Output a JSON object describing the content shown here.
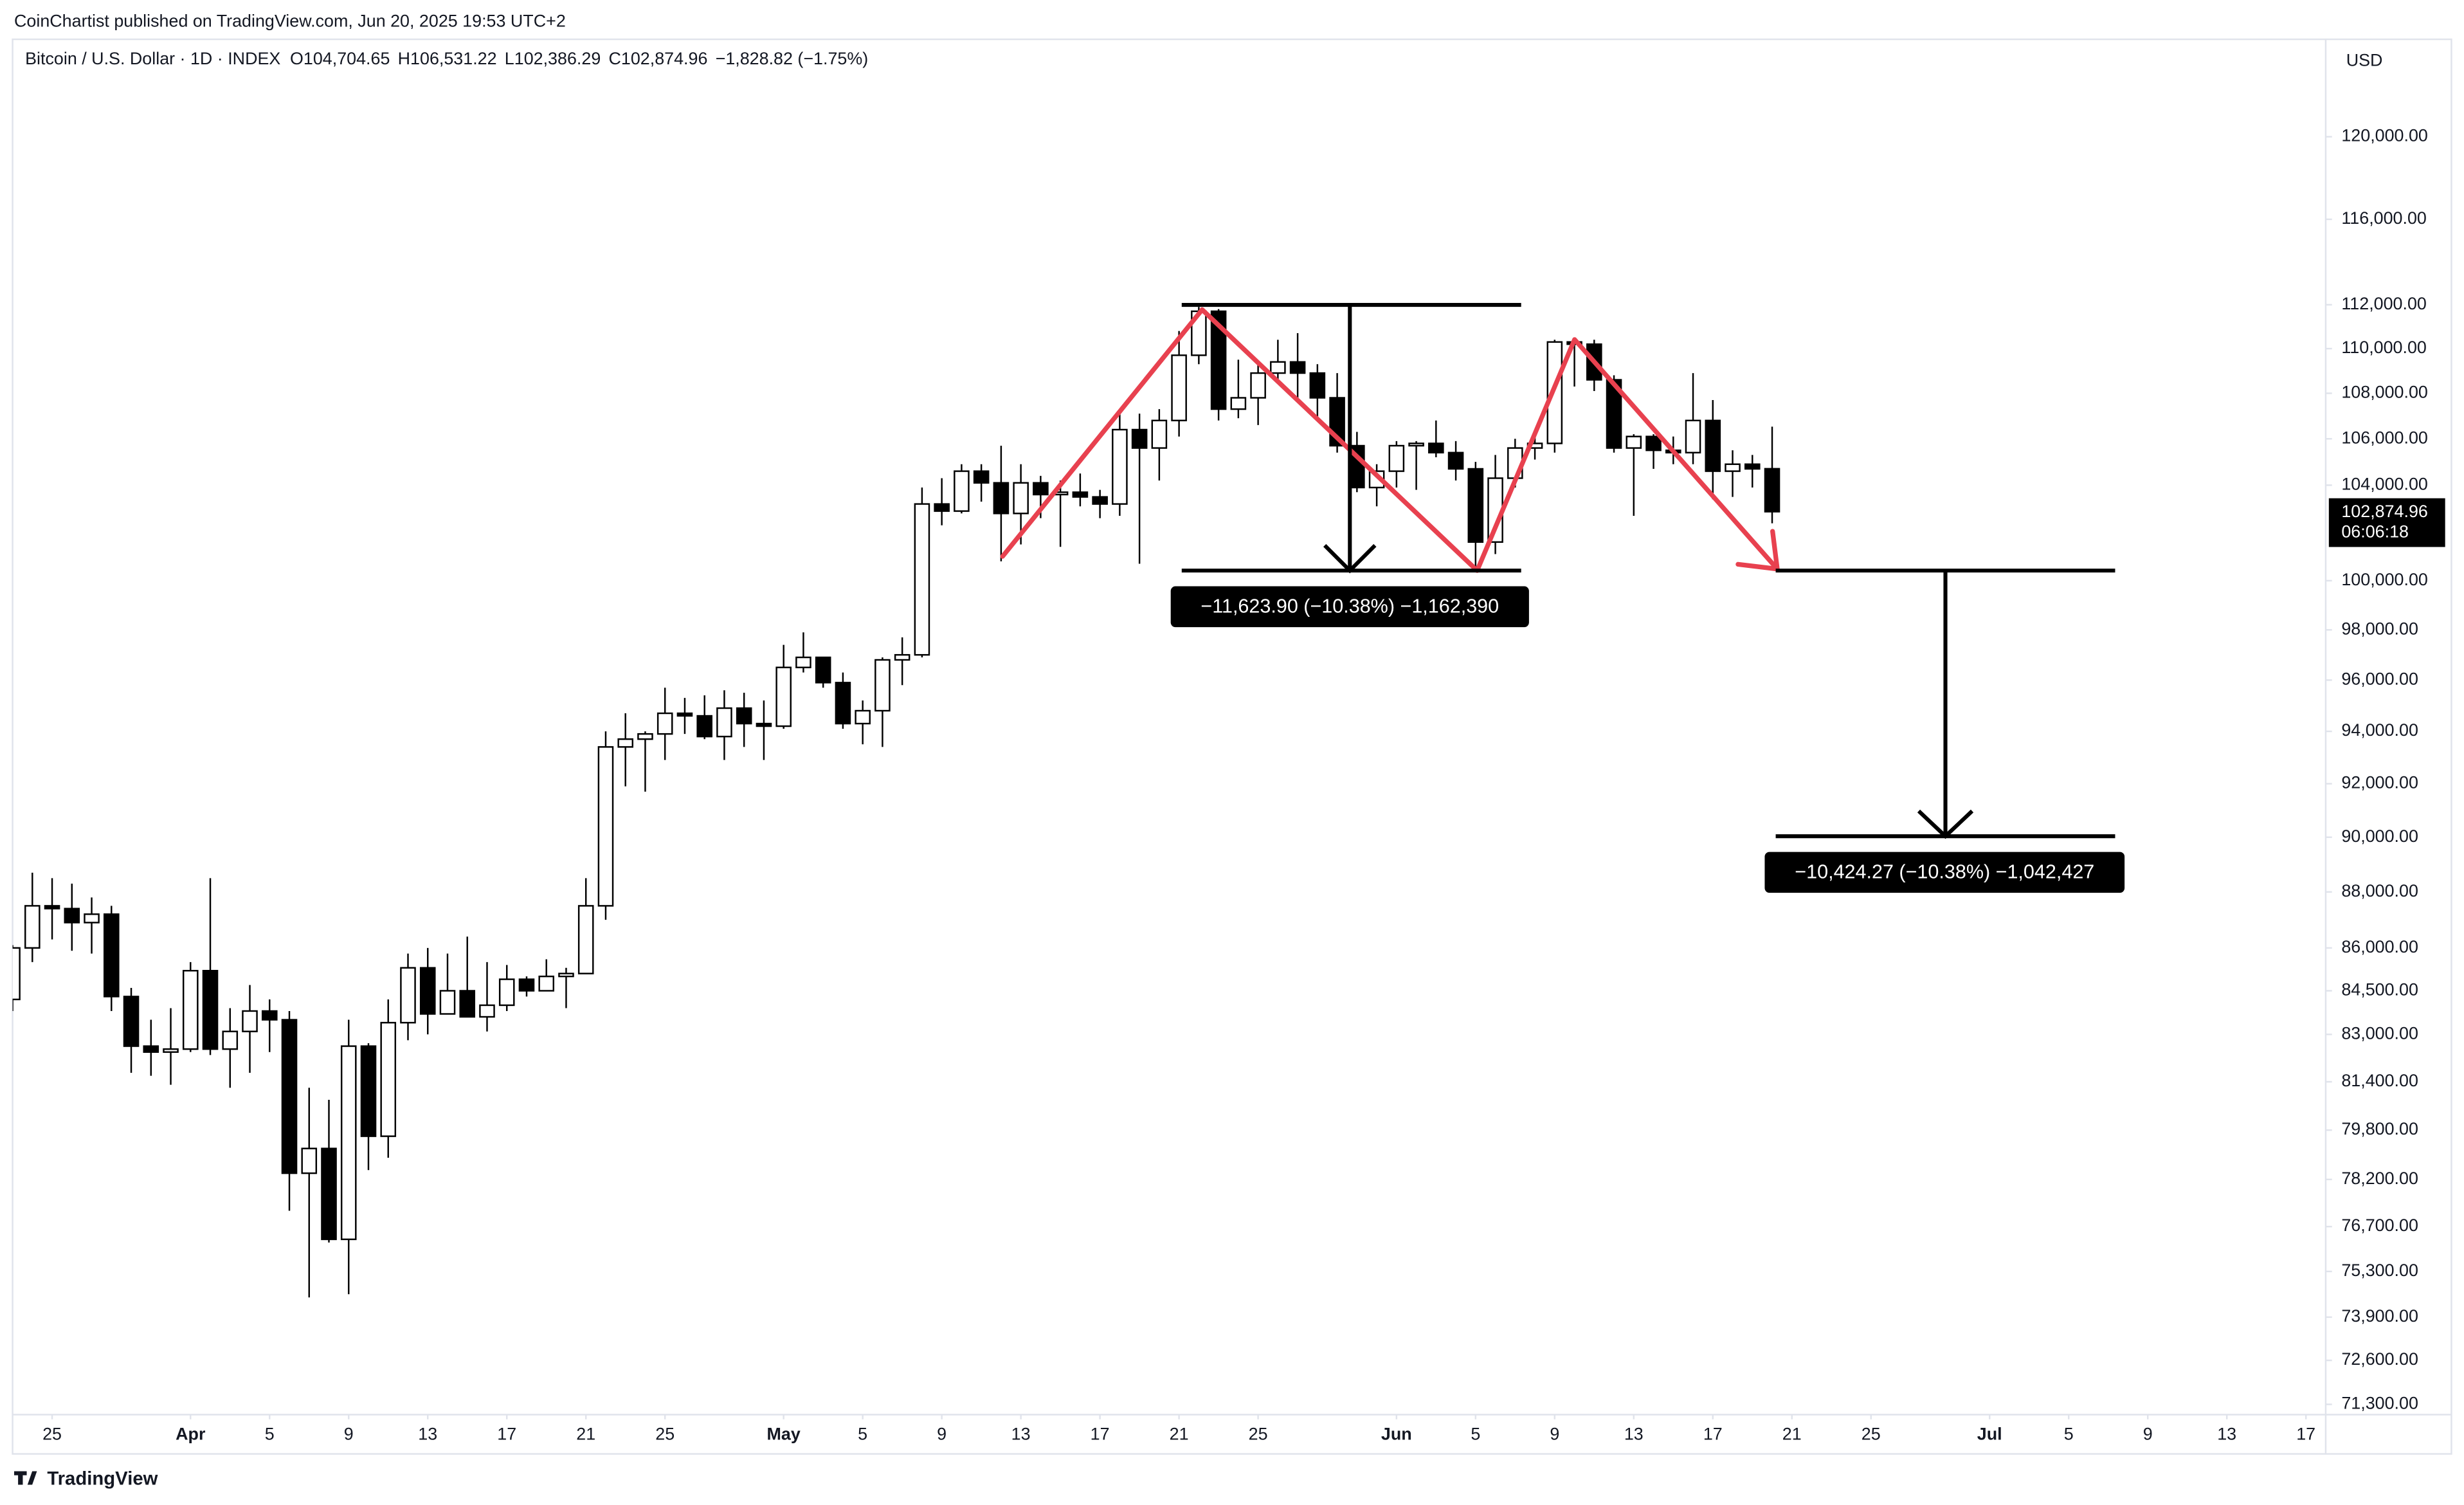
{
  "header": {
    "published": "CoinChartist published on TradingView.com, Jun 20, 2025 19:53 UTC+2",
    "logo": "TradingView"
  },
  "chart_data": {
    "type": "candlestick",
    "symbol": "Bitcoin / U.S. Dollar · 1D · INDEX",
    "legend_values": [
      "O104,704.65",
      "H106,531.22",
      "L102,386.29",
      "C102,874.96",
      "−1,828.82 (−1.75%)"
    ],
    "currency": "USD",
    "last_price_label": "102,874.96",
    "countdown": "06:06:18",
    "up_color": "#ffffff",
    "down_color": "#000000",
    "wick_color": "#000000",
    "log_scale": true,
    "grid": false,
    "x": [
      "2025-03-23",
      "2025-03-24",
      "2025-03-25",
      "2025-03-26",
      "2025-03-27",
      "2025-03-28",
      "2025-03-29",
      "2025-03-30",
      "2025-03-31",
      "2025-04-01",
      "2025-04-02",
      "2025-04-03",
      "2025-04-04",
      "2025-04-05",
      "2025-04-06",
      "2025-04-07",
      "2025-04-08",
      "2025-04-09",
      "2025-04-10",
      "2025-04-11",
      "2025-04-12",
      "2025-04-13",
      "2025-04-14",
      "2025-04-15",
      "2025-04-16",
      "2025-04-17",
      "2025-04-18",
      "2025-04-19",
      "2025-04-20",
      "2025-04-21",
      "2025-04-22",
      "2025-04-23",
      "2025-04-24",
      "2025-04-25",
      "2025-04-26",
      "2025-04-27",
      "2025-04-28",
      "2025-04-29",
      "2025-04-30",
      "2025-05-01",
      "2025-05-02",
      "2025-05-03",
      "2025-05-04",
      "2025-05-05",
      "2025-05-06",
      "2025-05-07",
      "2025-05-08",
      "2025-05-09",
      "2025-05-10",
      "2025-05-11",
      "2025-05-12",
      "2025-05-13",
      "2025-05-14",
      "2025-05-15",
      "2025-05-16",
      "2025-05-17",
      "2025-05-18",
      "2025-05-19",
      "2025-05-20",
      "2025-05-21",
      "2025-05-22",
      "2025-05-23",
      "2025-05-24",
      "2025-05-25",
      "2025-05-26",
      "2025-05-27",
      "2025-05-28",
      "2025-05-29",
      "2025-05-30",
      "2025-05-31",
      "2025-06-01",
      "2025-06-02",
      "2025-06-03",
      "2025-06-04",
      "2025-06-05",
      "2025-06-06",
      "2025-06-07",
      "2025-06-08",
      "2025-06-09",
      "2025-06-10",
      "2025-06-11",
      "2025-06-12",
      "2025-06-13",
      "2025-06-14",
      "2025-06-15",
      "2025-06-16",
      "2025-06-17",
      "2025-06-18",
      "2025-06-19",
      "2025-06-20"
    ],
    "open": [
      84200,
      86000,
      87500,
      87400,
      86900,
      87200,
      84300,
      82600,
      82400,
      82500,
      85200,
      82500,
      83100,
      83800,
      83500,
      78400,
      79200,
      76300,
      82600,
      79600,
      83400,
      85300,
      83700,
      84500,
      83600,
      84000,
      84900,
      84500,
      85000,
      85100,
      87500,
      93400,
      93700,
      93900,
      94700,
      94600,
      93800,
      94900,
      94300,
      94200,
      96500,
      96900,
      95900,
      94300,
      94800,
      96800,
      97000,
      103200,
      102900,
      104600,
      104100,
      102800,
      104100,
      103600,
      103700,
      103500,
      103200,
      106400,
      105600,
      106800,
      109700,
      111700,
      107300,
      107800,
      108900,
      109400,
      108900,
      107800,
      105700,
      103900,
      104600,
      105700,
      105800,
      105400,
      104700,
      101600,
      104300,
      105600,
      105800,
      110300,
      110200,
      108600,
      105600,
      106100,
      105500,
      105400,
      106800,
      104600,
      104900,
      104704.65
    ],
    "high": [
      86100,
      88700,
      88500,
      88300,
      87800,
      87500,
      84600,
      83500,
      83900,
      85500,
      88500,
      83900,
      84700,
      84200,
      83800,
      81200,
      80800,
      83500,
      82700,
      84200,
      85800,
      86000,
      85800,
      86400,
      85500,
      85400,
      85000,
      85600,
      85300,
      88500,
      94000,
      94700,
      94000,
      95700,
      95300,
      95400,
      95600,
      95500,
      95200,
      97400,
      97900,
      96900,
      96300,
      95200,
      96900,
      97700,
      103900,
      104300,
      104900,
      104900,
      105700,
      104900,
      104400,
      104200,
      104500,
      103800,
      107100,
      107100,
      107300,
      110800,
      111900,
      111800,
      109500,
      109300,
      110400,
      110700,
      109300,
      108900,
      106300,
      104900,
      105900,
      105900,
      106800,
      105900,
      105000,
      105300,
      106000,
      106400,
      110400,
      110500,
      110400,
      108800,
      106200,
      106200,
      106100,
      108900,
      107700,
      105500,
      105300,
      106531.22
    ],
    "low": [
      83800,
      85500,
      86300,
      85900,
      85800,
      83800,
      81700,
      81600,
      81300,
      82400,
      82300,
      81200,
      81700,
      82400,
      77200,
      74500,
      76200,
      74600,
      78500,
      78900,
      82800,
      83000,
      83700,
      83600,
      83100,
      83800,
      84300,
      84500,
      83900,
      85100,
      87000,
      91900,
      91700,
      92900,
      93900,
      93700,
      92900,
      93400,
      92900,
      94100,
      96300,
      95700,
      94100,
      93500,
      93400,
      95800,
      96900,
      102300,
      102800,
      103300,
      100800,
      101500,
      102600,
      101400,
      103100,
      102600,
      102700,
      100700,
      104200,
      106100,
      109300,
      106800,
      106900,
      106600,
      108600,
      107600,
      106800,
      105400,
      103700,
      103100,
      103900,
      103800,
      105200,
      104200,
      100400,
      101100,
      103900,
      105100,
      105400,
      108300,
      108100,
      105400,
      102700,
      104700,
      104900,
      104900,
      103400,
      103500,
      103900,
      102386.29
    ],
    "close": [
      86000,
      87500,
      87400,
      86900,
      87200,
      84300,
      82600,
      82400,
      82500,
      85200,
      82500,
      83100,
      83800,
      83500,
      78400,
      79200,
      76300,
      82600,
      79600,
      83400,
      85300,
      83700,
      84500,
      83600,
      84000,
      84900,
      84500,
      85000,
      85100,
      87500,
      93400,
      93700,
      93900,
      94700,
      94600,
      93800,
      94900,
      94300,
      94200,
      96500,
      96900,
      95900,
      94300,
      94800,
      96800,
      97000,
      103200,
      102900,
      104600,
      104100,
      102800,
      104100,
      103600,
      103700,
      103500,
      103200,
      106400,
      105600,
      106800,
      109700,
      111700,
      107300,
      107800,
      108900,
      109400,
      108900,
      107800,
      105700,
      103900,
      104600,
      105700,
      105800,
      105400,
      104700,
      101600,
      104300,
      105600,
      105800,
      110300,
      110200,
      108600,
      105600,
      106100,
      105500,
      105400,
      106800,
      104600,
      104900,
      104700,
      102874.96
    ],
    "xlim": [
      "2025-03-23",
      "2025-07-18"
    ],
    "xticks": [
      {
        "value": "2025-03-25",
        "label": "25"
      },
      {
        "value": "2025-04-01",
        "label": "Apr"
      },
      {
        "value": "2025-04-05",
        "label": "5"
      },
      {
        "value": "2025-04-09",
        "label": "9"
      },
      {
        "value": "2025-04-13",
        "label": "13"
      },
      {
        "value": "2025-04-17",
        "label": "17"
      },
      {
        "value": "2025-04-21",
        "label": "21"
      },
      {
        "value": "2025-04-25",
        "label": "25"
      },
      {
        "value": "2025-05-01",
        "label": "May"
      },
      {
        "value": "2025-05-05",
        "label": "5"
      },
      {
        "value": "2025-05-09",
        "label": "9"
      },
      {
        "value": "2025-05-13",
        "label": "13"
      },
      {
        "value": "2025-05-17",
        "label": "17"
      },
      {
        "value": "2025-05-21",
        "label": "21"
      },
      {
        "value": "2025-05-25",
        "label": "25"
      },
      {
        "value": "2025-06-01",
        "label": "Jun"
      },
      {
        "value": "2025-06-05",
        "label": "5"
      },
      {
        "value": "2025-06-09",
        "label": "9"
      },
      {
        "value": "2025-06-13",
        "label": "13"
      },
      {
        "value": "2025-06-17",
        "label": "17"
      },
      {
        "value": "2025-06-21",
        "label": "21"
      },
      {
        "value": "2025-06-25",
        "label": "25"
      },
      {
        "value": "2025-07-01",
        "label": "Jul"
      },
      {
        "value": "2025-07-05",
        "label": "5"
      },
      {
        "value": "2025-07-09",
        "label": "9"
      },
      {
        "value": "2025-07-13",
        "label": "13"
      },
      {
        "value": "2025-07-17",
        "label": "17"
      }
    ],
    "ylim": [
      71000,
      124900
    ],
    "yticks": [
      {
        "value": 71300,
        "label": "71,300.00"
      },
      {
        "value": 72600,
        "label": "72,600.00"
      },
      {
        "value": 73900,
        "label": "73,900.00"
      },
      {
        "value": 75300,
        "label": "75,300.00"
      },
      {
        "value": 76700,
        "label": "76,700.00"
      },
      {
        "value": 78200,
        "label": "78,200.00"
      },
      {
        "value": 79800,
        "label": "79,800.00"
      },
      {
        "value": 81400,
        "label": "81,400.00"
      },
      {
        "value": 83000,
        "label": "83,000.00"
      },
      {
        "value": 84500,
        "label": "84,500.00"
      },
      {
        "value": 86000,
        "label": "86,000.00"
      },
      {
        "value": 88000,
        "label": "88,000.00"
      },
      {
        "value": 90000,
        "label": "90,000.00"
      },
      {
        "value": 92000,
        "label": "92,000.00"
      },
      {
        "value": 94000,
        "label": "94,000.00"
      },
      {
        "value": 96000,
        "label": "96,000.00"
      },
      {
        "value": 98000,
        "label": "98,000.00"
      },
      {
        "value": 100000,
        "label": "100,000.00"
      },
      {
        "value": 104000,
        "label": "104,000.00"
      },
      {
        "value": 106000,
        "label": "106,000.00"
      },
      {
        "value": 108000,
        "label": "108,000.00"
      },
      {
        "value": 110000,
        "label": "110,000.00"
      },
      {
        "value": 112000,
        "label": "112,000.00"
      },
      {
        "value": 116000,
        "label": "116,000.00"
      },
      {
        "value": 120000,
        "label": "120,000.00"
      }
    ],
    "annotations": [
      "−11,623.90 (−10.38%) −1,162,390",
      "−10,424.27 (−10.38%) −1,042,427"
    ]
  }
}
